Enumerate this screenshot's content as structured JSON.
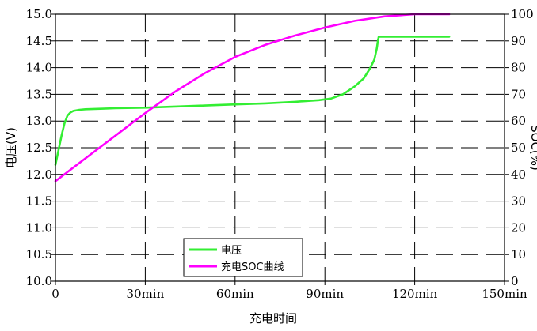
{
  "chart_data": {
    "type": "line",
    "xlabel": "充电时间",
    "ylabel": "电压(V)",
    "y2label": "SOC(%)",
    "xlim": [
      0,
      150
    ],
    "ylim": [
      10.0,
      15.0
    ],
    "y2lim": [
      0,
      100
    ],
    "x_ticks": [
      0,
      30,
      60,
      90,
      120,
      150
    ],
    "x_tick_labels": [
      "0",
      "30min",
      "60min",
      "90min",
      "120min",
      "150min"
    ],
    "y_ticks": [
      10.0,
      10.5,
      11.0,
      11.5,
      12.0,
      12.5,
      13.0,
      13.5,
      14.0,
      14.5,
      15.0
    ],
    "y_tick_labels": [
      "10.0",
      "10.5",
      "11.0",
      "11.5",
      "12.0",
      "12.5",
      "13.0",
      "13.5",
      "14.0",
      "14.5",
      "15.0"
    ],
    "y2_ticks": [
      0,
      10,
      20,
      30,
      40,
      50,
      60,
      70,
      80,
      90,
      100
    ],
    "y2_tick_labels": [
      "0",
      "10",
      "20",
      "30",
      "40",
      "50",
      "60",
      "70",
      "80",
      "90",
      "100"
    ],
    "grid": true,
    "grid_style": "dashed",
    "legend_position": "bottom-center",
    "series": [
      {
        "name": "电压",
        "axis": "left",
        "color": "#33ee33",
        "x": [
          0,
          1,
          2,
          3,
          4,
          5,
          6,
          8,
          10,
          15,
          20,
          30,
          40,
          50,
          60,
          70,
          80,
          88,
          92,
          96,
          100,
          103,
          105,
          106.5,
          107.3,
          107.7,
          108,
          112,
          118,
          124,
          131.5
        ],
        "y": [
          12.18,
          12.45,
          12.72,
          12.95,
          13.1,
          13.16,
          13.19,
          13.21,
          13.22,
          13.23,
          13.24,
          13.25,
          13.27,
          13.29,
          13.31,
          13.33,
          13.36,
          13.39,
          13.42,
          13.5,
          13.65,
          13.8,
          13.98,
          14.15,
          14.35,
          14.5,
          14.58,
          14.58,
          14.58,
          14.58,
          14.58
        ]
      },
      {
        "name": "充电SOC曲线",
        "axis": "right",
        "color": "#ff00ff",
        "x": [
          0,
          10,
          20,
          30,
          40,
          50,
          60,
          70,
          80,
          90,
          100,
          110,
          120,
          131.5
        ],
        "y": [
          37.5,
          46,
          54.5,
          63,
          71,
          78,
          84,
          88.5,
          92,
          95,
          97.5,
          99.2,
          100,
          100
        ]
      }
    ]
  }
}
